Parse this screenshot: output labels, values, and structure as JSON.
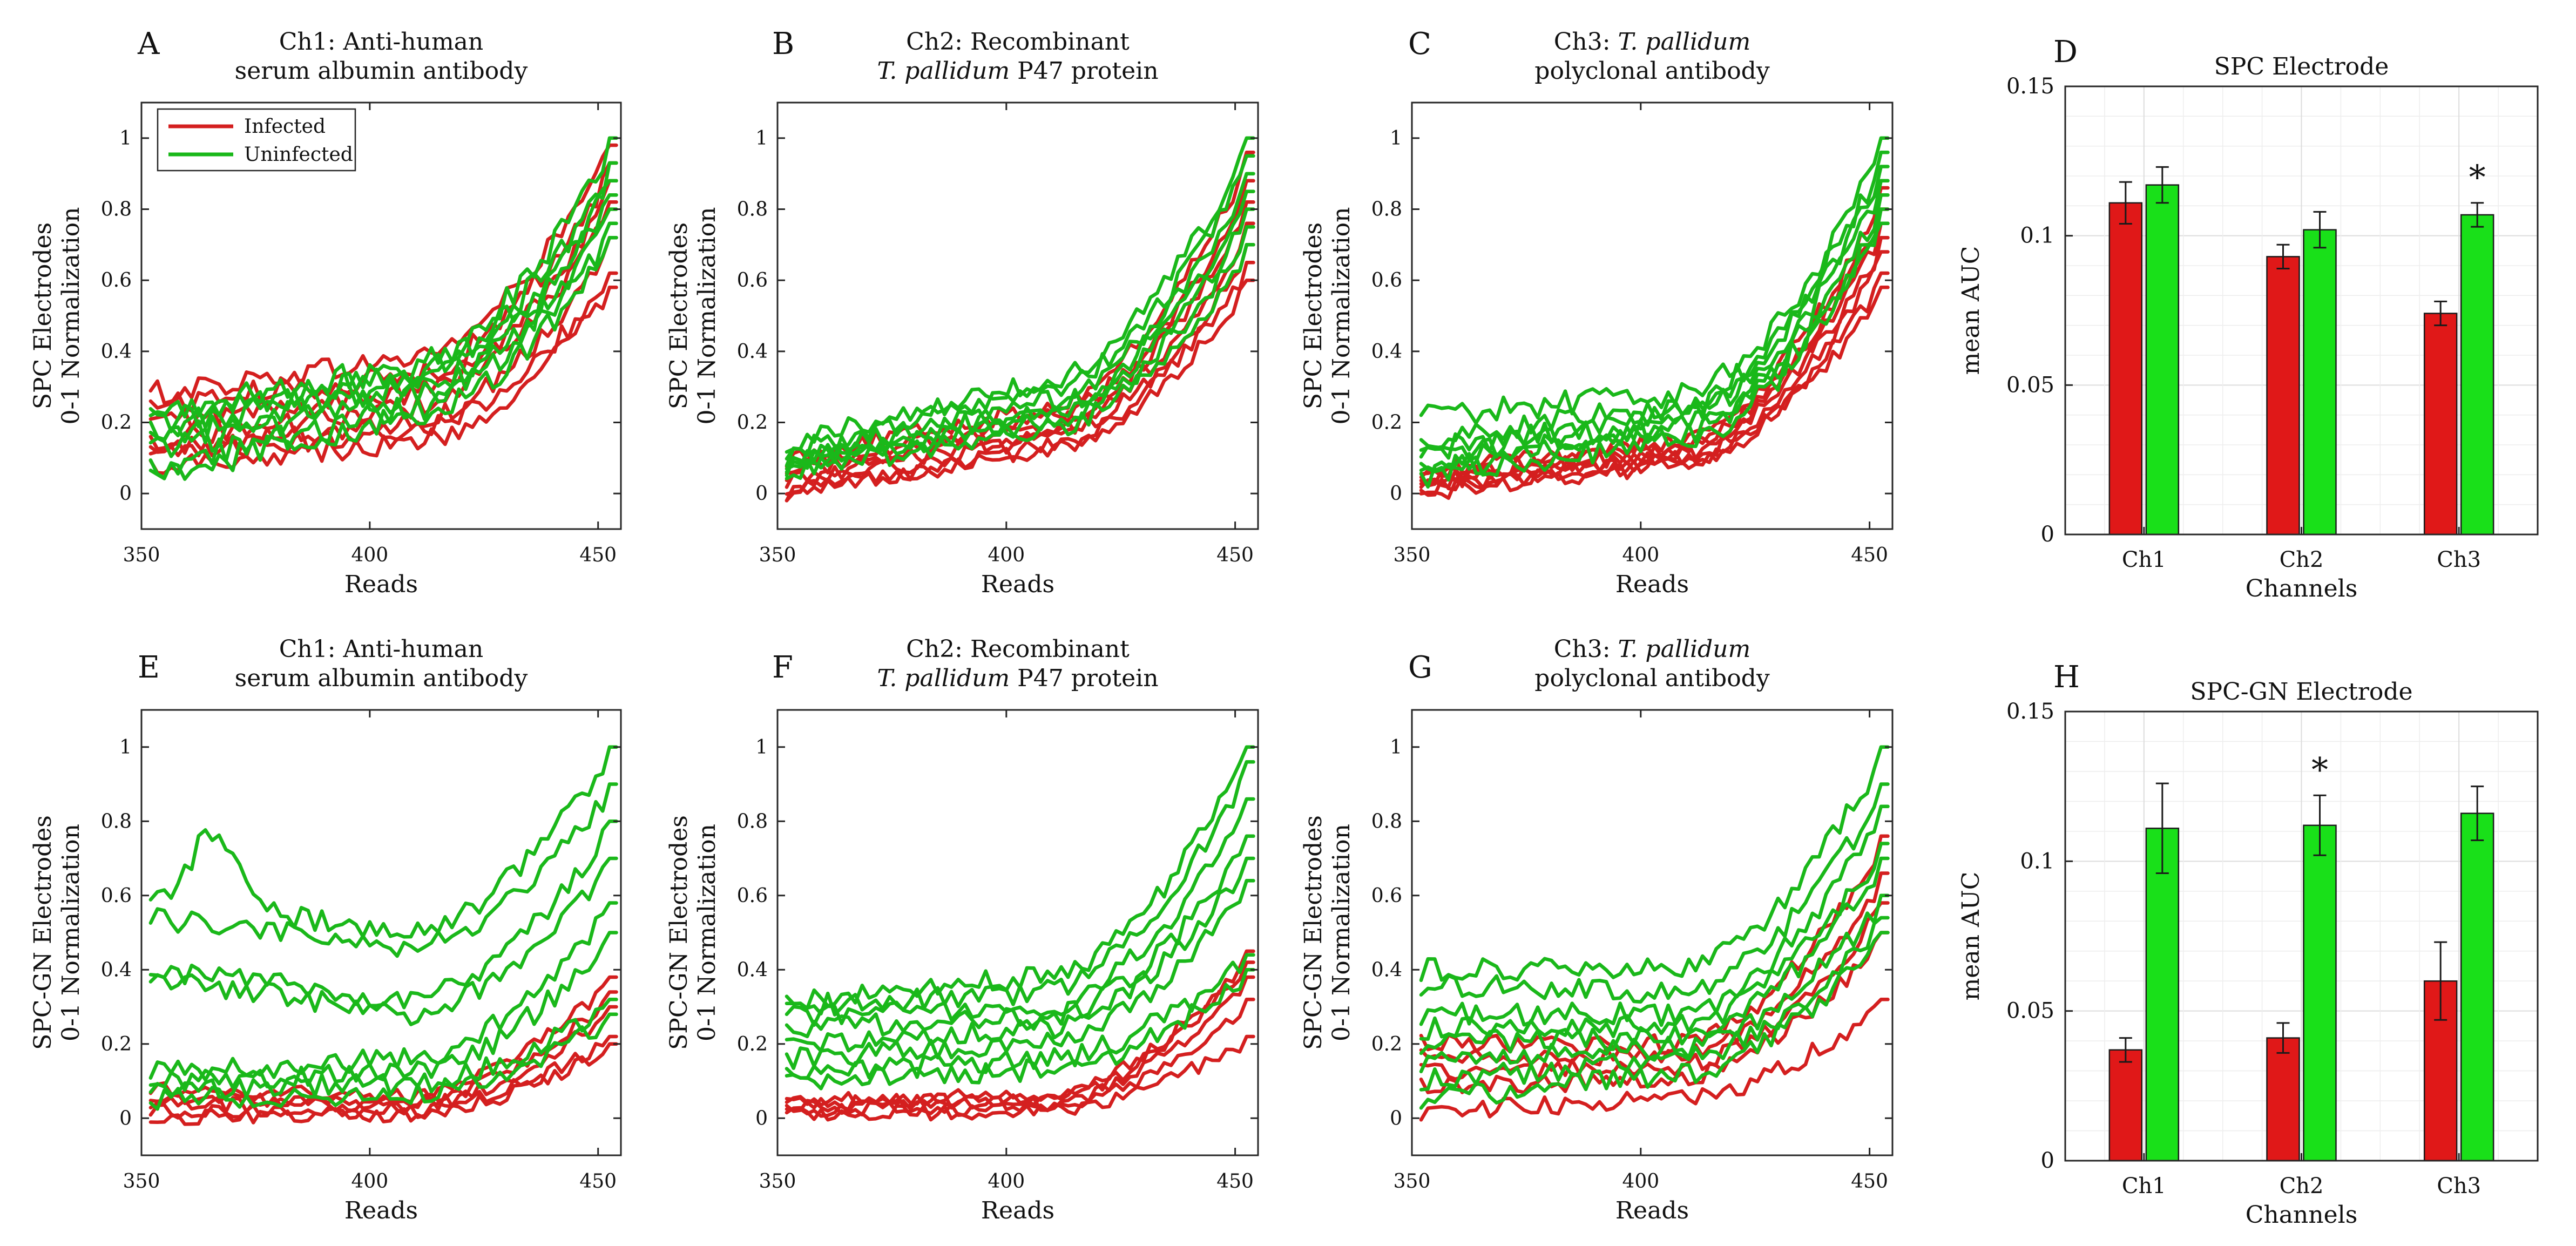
{
  "colors": {
    "infected": "#d41f1f",
    "uninfected": "#1ab81a",
    "infected_bar": "#e01818",
    "uninfected_bar": "#19e019"
  },
  "legend": {
    "infected": "Infected",
    "uninfected": "Uninfected"
  },
  "chart_data": [
    {
      "panel": "A",
      "type": "line",
      "title_lines": [
        "Ch1: Anti-human",
        "serum albumin antibody"
      ],
      "xlabel": "Reads",
      "ylabel_lines": [
        "SPC Electrodes",
        "0-1 Normalization"
      ],
      "xlim": [
        350,
        455
      ],
      "ylim": [
        -0.1,
        1.1
      ],
      "xticks": [
        "350",
        "400",
        "450"
      ],
      "yticks": [
        "0",
        "0.2",
        "0.4",
        "0.6",
        "0.8",
        "1"
      ],
      "legend": "top-left",
      "series": [
        {
          "group": "infected",
          "start": 0.28,
          "mid": 0.38,
          "end": 0.98,
          "noise": 0.035
        },
        {
          "group": "infected",
          "start": 0.25,
          "mid": 0.33,
          "end": 0.93,
          "noise": 0.035
        },
        {
          "group": "infected",
          "start": 0.2,
          "mid": 0.28,
          "end": 0.88,
          "noise": 0.03
        },
        {
          "group": "infected",
          "start": 0.15,
          "mid": 0.24,
          "end": 0.82,
          "noise": 0.03
        },
        {
          "group": "infected",
          "start": 0.12,
          "mid": 0.2,
          "end": 0.72,
          "noise": 0.03
        },
        {
          "group": "infected",
          "start": 0.1,
          "mid": 0.18,
          "end": 0.62,
          "noise": 0.03
        },
        {
          "group": "infected",
          "start": 0.08,
          "mid": 0.14,
          "end": 0.58,
          "noise": 0.03
        },
        {
          "group": "uninfected",
          "start": 0.22,
          "mid": 0.36,
          "end": 1.0,
          "noise": 0.04
        },
        {
          "group": "uninfected",
          "start": 0.2,
          "mid": 0.33,
          "end": 0.93,
          "noise": 0.04
        },
        {
          "group": "uninfected",
          "start": 0.18,
          "mid": 0.31,
          "end": 0.88,
          "noise": 0.04
        },
        {
          "group": "uninfected",
          "start": 0.15,
          "mid": 0.29,
          "end": 0.84,
          "noise": 0.04
        },
        {
          "group": "uninfected",
          "start": 0.12,
          "mid": 0.27,
          "end": 0.8,
          "noise": 0.04
        },
        {
          "group": "uninfected",
          "start": 0.07,
          "mid": 0.24,
          "end": 0.76,
          "noise": 0.04
        },
        {
          "group": "uninfected",
          "start": 0.04,
          "mid": 0.22,
          "end": 0.72,
          "noise": 0.04
        }
      ]
    },
    {
      "panel": "B",
      "type": "line",
      "title_lines": [
        "Ch2: Recombinant",
        "T. pallidum P47 protein"
      ],
      "xlabel": "Reads",
      "ylabel_lines": [
        "SPC Electrodes",
        "0-1 Normalization"
      ],
      "xlim": [
        350,
        455
      ],
      "ylim": [
        -0.1,
        1.1
      ],
      "xticks": [
        "350",
        "400",
        "450"
      ],
      "yticks": [
        "0",
        "0.2",
        "0.4",
        "0.6",
        "0.8",
        "1"
      ],
      "series": [
        {
          "group": "infected",
          "start": 0.1,
          "mid": 0.24,
          "end": 0.96,
          "noise": 0.025
        },
        {
          "group": "infected",
          "start": 0.08,
          "mid": 0.21,
          "end": 0.88,
          "noise": 0.025
        },
        {
          "group": "infected",
          "start": 0.06,
          "mid": 0.19,
          "end": 0.82,
          "noise": 0.025
        },
        {
          "group": "infected",
          "start": 0.04,
          "mid": 0.17,
          "end": 0.76,
          "noise": 0.025
        },
        {
          "group": "infected",
          "start": 0.02,
          "mid": 0.15,
          "end": 0.7,
          "noise": 0.025
        },
        {
          "group": "infected",
          "start": 0.0,
          "mid": 0.13,
          "end": 0.65,
          "noise": 0.025
        },
        {
          "group": "infected",
          "start": 0.0,
          "mid": 0.12,
          "end": 0.6,
          "noise": 0.025
        },
        {
          "group": "uninfected",
          "start": 0.14,
          "mid": 0.32,
          "end": 1.0,
          "noise": 0.03
        },
        {
          "group": "uninfected",
          "start": 0.12,
          "mid": 0.29,
          "end": 0.95,
          "noise": 0.03
        },
        {
          "group": "uninfected",
          "start": 0.1,
          "mid": 0.26,
          "end": 0.9,
          "noise": 0.03
        },
        {
          "group": "uninfected",
          "start": 0.09,
          "mid": 0.24,
          "end": 0.85,
          "noise": 0.03
        },
        {
          "group": "uninfected",
          "start": 0.08,
          "mid": 0.22,
          "end": 0.8,
          "noise": 0.03
        },
        {
          "group": "uninfected",
          "start": 0.07,
          "mid": 0.2,
          "end": 0.75,
          "noise": 0.03
        },
        {
          "group": "uninfected",
          "start": 0.06,
          "mid": 0.18,
          "end": 0.7,
          "noise": 0.03
        }
      ]
    },
    {
      "panel": "C",
      "type": "line",
      "title_lines": [
        "Ch3: T. pallidum",
        "polyclonal antibody"
      ],
      "xlabel": "Reads",
      "ylabel_lines": [
        "SPC Electrodes",
        "0-1 Normalization"
      ],
      "xlim": [
        350,
        455
      ],
      "ylim": [
        -0.1,
        1.1
      ],
      "xticks": [
        "350",
        "400",
        "450"
      ],
      "yticks": [
        "0",
        "0.2",
        "0.4",
        "0.6",
        "0.8",
        "1"
      ],
      "series": [
        {
          "group": "infected",
          "start": 0.06,
          "mid": 0.15,
          "end": 0.86,
          "noise": 0.025
        },
        {
          "group": "infected",
          "start": 0.05,
          "mid": 0.13,
          "end": 0.8,
          "noise": 0.025
        },
        {
          "group": "infected",
          "start": 0.04,
          "mid": 0.12,
          "end": 0.76,
          "noise": 0.025
        },
        {
          "group": "infected",
          "start": 0.03,
          "mid": 0.11,
          "end": 0.72,
          "noise": 0.025
        },
        {
          "group": "infected",
          "start": 0.02,
          "mid": 0.1,
          "end": 0.68,
          "noise": 0.025
        },
        {
          "group": "infected",
          "start": 0.01,
          "mid": 0.09,
          "end": 0.62,
          "noise": 0.025
        },
        {
          "group": "infected",
          "start": 0.0,
          "mid": 0.08,
          "end": 0.58,
          "noise": 0.025
        },
        {
          "group": "uninfected",
          "start": 0.22,
          "mid": 0.28,
          "end": 1.0,
          "noise": 0.035
        },
        {
          "group": "uninfected",
          "start": 0.15,
          "mid": 0.25,
          "end": 0.96,
          "noise": 0.035
        },
        {
          "group": "uninfected",
          "start": 0.12,
          "mid": 0.23,
          "end": 0.92,
          "noise": 0.035
        },
        {
          "group": "uninfected",
          "start": 0.1,
          "mid": 0.21,
          "end": 0.88,
          "noise": 0.035
        },
        {
          "group": "uninfected",
          "start": 0.08,
          "mid": 0.19,
          "end": 0.84,
          "noise": 0.035
        },
        {
          "group": "uninfected",
          "start": 0.06,
          "mid": 0.17,
          "end": 0.8,
          "noise": 0.035
        },
        {
          "group": "uninfected",
          "start": 0.05,
          "mid": 0.15,
          "end": 0.76,
          "noise": 0.035
        }
      ]
    },
    {
      "panel": "D",
      "type": "bar",
      "title_lines": [
        "SPC Electrode"
      ],
      "xlabel": "Channels",
      "ylabel": "mean AUC",
      "categories": [
        "Ch1",
        "Ch2",
        "Ch3"
      ],
      "ylim": [
        0,
        0.15
      ],
      "yticks": [
        "0",
        "0.05",
        "0.1",
        "0.15"
      ],
      "series": [
        {
          "name": "Infected",
          "group": "infected",
          "values": [
            0.111,
            0.093,
            0.074
          ],
          "errors": [
            0.007,
            0.004,
            0.004
          ]
        },
        {
          "name": "Uninfected",
          "group": "uninfected",
          "values": [
            0.117,
            0.102,
            0.107
          ],
          "errors": [
            0.006,
            0.006,
            0.004
          ]
        }
      ],
      "significance": [
        {
          "category": "Ch3",
          "label": "*"
        }
      ]
    },
    {
      "panel": "E",
      "type": "line",
      "title_lines": [
        "Ch1: Anti-human",
        "serum albumin antibody"
      ],
      "xlabel": "Reads",
      "ylabel_lines": [
        "SPC-GN Electrodes",
        "0-1 Normalization"
      ],
      "xlim": [
        350,
        455
      ],
      "ylim": [
        -0.1,
        1.1
      ],
      "xticks": [
        "350",
        "400",
        "450"
      ],
      "yticks": [
        "0",
        "0.2",
        "0.4",
        "0.6",
        "0.8",
        "1"
      ],
      "series": [
        {
          "group": "infected",
          "start": 0.08,
          "mid": 0.06,
          "end": 0.38,
          "noise": 0.02
        },
        {
          "group": "infected",
          "start": 0.06,
          "mid": 0.04,
          "end": 0.34,
          "noise": 0.02
        },
        {
          "group": "infected",
          "start": 0.04,
          "mid": 0.03,
          "end": 0.3,
          "noise": 0.02
        },
        {
          "group": "infected",
          "start": 0.02,
          "mid": 0.02,
          "end": 0.22,
          "noise": 0.02
        },
        {
          "group": "infected",
          "start": 0.0,
          "mid": 0.01,
          "end": 0.2,
          "noise": 0.02
        },
        {
          "group": "uninfected",
          "start": 0.6,
          "mid": 0.5,
          "end": 1.0,
          "noise": 0.03,
          "bump": 0.2
        },
        {
          "group": "uninfected",
          "start": 0.54,
          "mid": 0.46,
          "end": 0.9,
          "noise": 0.03
        },
        {
          "group": "uninfected",
          "start": 0.4,
          "mid": 0.32,
          "end": 0.8,
          "noise": 0.03
        },
        {
          "group": "uninfected",
          "start": 0.38,
          "mid": 0.28,
          "end": 0.7,
          "noise": 0.03
        },
        {
          "group": "uninfected",
          "start": 0.12,
          "mid": 0.16,
          "end": 0.58,
          "noise": 0.03
        },
        {
          "group": "uninfected",
          "start": 0.1,
          "mid": 0.12,
          "end": 0.5,
          "noise": 0.03
        },
        {
          "group": "uninfected",
          "start": 0.08,
          "mid": 0.09,
          "end": 0.32,
          "noise": 0.03
        },
        {
          "group": "uninfected",
          "start": 0.05,
          "mid": 0.07,
          "end": 0.28,
          "noise": 0.03
        }
      ]
    },
    {
      "panel": "F",
      "type": "line",
      "title_lines": [
        "Ch2: Recombinant",
        "T. pallidum P47 protein"
      ],
      "xlabel": "Reads",
      "ylabel_lines": [
        "SPC-GN Electrodes",
        "0-1 Normalization"
      ],
      "xlim": [
        350,
        455
      ],
      "ylim": [
        -0.1,
        1.1
      ],
      "xticks": [
        "350",
        "400",
        "450"
      ],
      "yticks": [
        "0",
        "0.2",
        "0.4",
        "0.6",
        "0.8",
        "1"
      ],
      "series": [
        {
          "group": "infected",
          "start": 0.05,
          "mid": 0.06,
          "end": 0.45,
          "noise": 0.02
        },
        {
          "group": "infected",
          "start": 0.04,
          "mid": 0.05,
          "end": 0.42,
          "noise": 0.02
        },
        {
          "group": "infected",
          "start": 0.03,
          "mid": 0.04,
          "end": 0.38,
          "noise": 0.02
        },
        {
          "group": "infected",
          "start": 0.02,
          "mid": 0.03,
          "end": 0.32,
          "noise": 0.02
        },
        {
          "group": "infected",
          "start": 0.01,
          "mid": 0.02,
          "end": 0.22,
          "noise": 0.02
        },
        {
          "group": "uninfected",
          "start": 0.32,
          "mid": 0.38,
          "end": 1.0,
          "noise": 0.03
        },
        {
          "group": "uninfected",
          "start": 0.3,
          "mid": 0.34,
          "end": 0.96,
          "noise": 0.03
        },
        {
          "group": "uninfected",
          "start": 0.27,
          "mid": 0.3,
          "end": 0.86,
          "noise": 0.03
        },
        {
          "group": "uninfected",
          "start": 0.24,
          "mid": 0.27,
          "end": 0.76,
          "noise": 0.03
        },
        {
          "group": "uninfected",
          "start": 0.2,
          "mid": 0.24,
          "end": 0.7,
          "noise": 0.03
        },
        {
          "group": "uninfected",
          "start": 0.16,
          "mid": 0.2,
          "end": 0.64,
          "noise": 0.03
        },
        {
          "group": "uninfected",
          "start": 0.12,
          "mid": 0.16,
          "end": 0.44,
          "noise": 0.03
        },
        {
          "group": "uninfected",
          "start": 0.1,
          "mid": 0.13,
          "end": 0.4,
          "noise": 0.03
        }
      ]
    },
    {
      "panel": "G",
      "type": "line",
      "title_lines": [
        "Ch3: T. pallidum",
        "polyclonal antibody"
      ],
      "xlabel": "Reads",
      "ylabel_lines": [
        "SPC-GN Electrodes",
        "0-1 Normalization"
      ],
      "xlim": [
        350,
        455
      ],
      "ylim": [
        -0.1,
        1.1
      ],
      "xticks": [
        "350",
        "400",
        "450"
      ],
      "yticks": [
        "0",
        "0.2",
        "0.4",
        "0.6",
        "0.8",
        "1"
      ],
      "series": [
        {
          "group": "infected",
          "start": 0.2,
          "mid": 0.2,
          "end": 0.76,
          "noise": 0.025
        },
        {
          "group": "infected",
          "start": 0.16,
          "mid": 0.17,
          "end": 0.66,
          "noise": 0.025
        },
        {
          "group": "infected",
          "start": 0.12,
          "mid": 0.14,
          "end": 0.58,
          "noise": 0.025
        },
        {
          "group": "infected",
          "start": 0.08,
          "mid": 0.11,
          "end": 0.5,
          "noise": 0.025
        },
        {
          "group": "infected",
          "start": 0.02,
          "mid": 0.05,
          "end": 0.32,
          "noise": 0.025
        },
        {
          "group": "uninfected",
          "start": 0.4,
          "mid": 0.4,
          "end": 1.0,
          "noise": 0.03
        },
        {
          "group": "uninfected",
          "start": 0.36,
          "mid": 0.34,
          "end": 0.9,
          "noise": 0.03
        },
        {
          "group": "uninfected",
          "start": 0.28,
          "mid": 0.28,
          "end": 0.84,
          "noise": 0.03
        },
        {
          "group": "uninfected",
          "start": 0.24,
          "mid": 0.25,
          "end": 0.74,
          "noise": 0.03
        },
        {
          "group": "uninfected",
          "start": 0.2,
          "mid": 0.22,
          "end": 0.7,
          "noise": 0.03
        },
        {
          "group": "uninfected",
          "start": 0.15,
          "mid": 0.19,
          "end": 0.6,
          "noise": 0.03
        },
        {
          "group": "uninfected",
          "start": 0.1,
          "mid": 0.16,
          "end": 0.54,
          "noise": 0.03
        },
        {
          "group": "uninfected",
          "start": 0.05,
          "mid": 0.12,
          "end": 0.5,
          "noise": 0.03
        }
      ]
    },
    {
      "panel": "H",
      "type": "bar",
      "title_lines": [
        "SPC-GN Electrode"
      ],
      "xlabel": "Channels",
      "ylabel": "mean AUC",
      "categories": [
        "Ch1",
        "Ch2",
        "Ch3"
      ],
      "ylim": [
        0,
        0.15
      ],
      "yticks": [
        "0",
        "0.05",
        "0.1",
        "0.15"
      ],
      "series": [
        {
          "name": "Infected",
          "group": "infected",
          "values": [
            0.037,
            0.041,
            0.06
          ],
          "errors": [
            0.004,
            0.005,
            0.013
          ]
        },
        {
          "name": "Uninfected",
          "group": "uninfected",
          "values": [
            0.111,
            0.112,
            0.116
          ],
          "errors": [
            0.015,
            0.01,
            0.009
          ]
        }
      ],
      "significance": [
        {
          "category": "Ch2",
          "label": "*"
        }
      ]
    }
  ]
}
